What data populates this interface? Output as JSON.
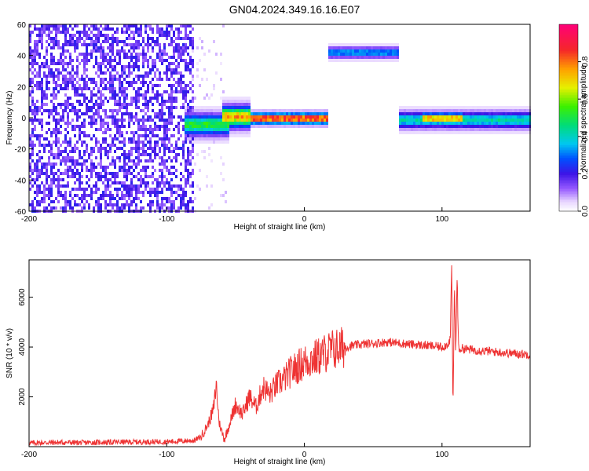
{
  "page_title": "GN04.2024.349.16.16.E07",
  "chart_data": [
    {
      "type": "heatmap",
      "xlabel": "Height of straight line (km)",
      "ylabel": "Frequency (Hz)",
      "xlim": [
        -200,
        164
      ],
      "ylim": [
        -60,
        60
      ],
      "x_ticks": [
        -200,
        -100,
        0,
        100
      ],
      "y_ticks": [
        60,
        40,
        20,
        0,
        -20,
        -40,
        -60
      ],
      "colorbar": {
        "label": "Normalized spectral amplitude",
        "range": [
          0,
          1
        ],
        "ticks": [
          "0.0",
          "0.2",
          "0.4",
          "0.6",
          "0.8"
        ]
      },
      "noise_region": {
        "x_range": [
          -200,
          -80
        ],
        "y_range": [
          -60,
          60
        ],
        "typical_amplitude": 0.12
      },
      "scatter_region": {
        "x_range": [
          -82,
          -56
        ],
        "y_range": [
          -60,
          60
        ],
        "typical_amplitude": 0.05
      },
      "bands": [
        {
          "x_start": -88,
          "x_end": -55,
          "freq": -4,
          "halfwidth": 4,
          "peak_amplitude": 0.55
        },
        {
          "x_start": -60,
          "x_end": -40,
          "freq": 1,
          "halfwidth": 4,
          "peak_amplitude": 0.8
        },
        {
          "x_start": -40,
          "x_end": 17,
          "freq": 0,
          "halfwidth": 2,
          "peak_amplitude": 0.98
        },
        {
          "x_start": 17,
          "x_end": 69,
          "freq": 42,
          "halfwidth": 2,
          "peak_amplitude": 0.35
        },
        {
          "x_start": 68,
          "x_end": 164,
          "freq": -1,
          "halfwidth": 3,
          "peak_amplitude": 0.45
        },
        {
          "x_start": 85,
          "x_end": 115,
          "freq": 0,
          "halfwidth": 2,
          "peak_amplitude": 0.85
        }
      ]
    },
    {
      "type": "line",
      "xlabel": "Height of straight line (km)",
      "ylabel": "SNR (10 * v/v)",
      "xlim": [
        -200,
        164
      ],
      "ylim": [
        0,
        7500
      ],
      "x_ticks": [
        -200,
        -100,
        0,
        100
      ],
      "y_ticks": [
        2000,
        4000,
        6000
      ],
      "series": [
        {
          "color": "#ee3333",
          "x": [
            -200,
            -180,
            -160,
            -140,
            -120,
            -100,
            -90,
            -80,
            -75,
            -70,
            -66,
            -64,
            -62,
            -60,
            -58,
            -55,
            -50,
            -45,
            -40,
            -35,
            -30,
            -25,
            -20,
            -15,
            -10,
            -5,
            0,
            5,
            10,
            15,
            20,
            25,
            30,
            40,
            50,
            60,
            70,
            80,
            90,
            100,
            104,
            106,
            107,
            108,
            109,
            110,
            111,
            112,
            115,
            120,
            130,
            140,
            150,
            164
          ],
          "y": [
            150,
            170,
            160,
            180,
            190,
            200,
            220,
            250,
            400,
            900,
            1500,
            2500,
            1000,
            600,
            300,
            800,
            1700,
            1300,
            2000,
            1600,
            2400,
            2100,
            2500,
            2700,
            3000,
            3200,
            3400,
            3500,
            3600,
            3750,
            3900,
            3950,
            4000,
            4100,
            4150,
            4200,
            4150,
            4100,
            4050,
            4000,
            4100,
            4300,
            7400,
            1300,
            6500,
            3800,
            6900,
            3900,
            3950,
            3900,
            3850,
            3800,
            3750,
            3700
          ]
        }
      ]
    }
  ]
}
